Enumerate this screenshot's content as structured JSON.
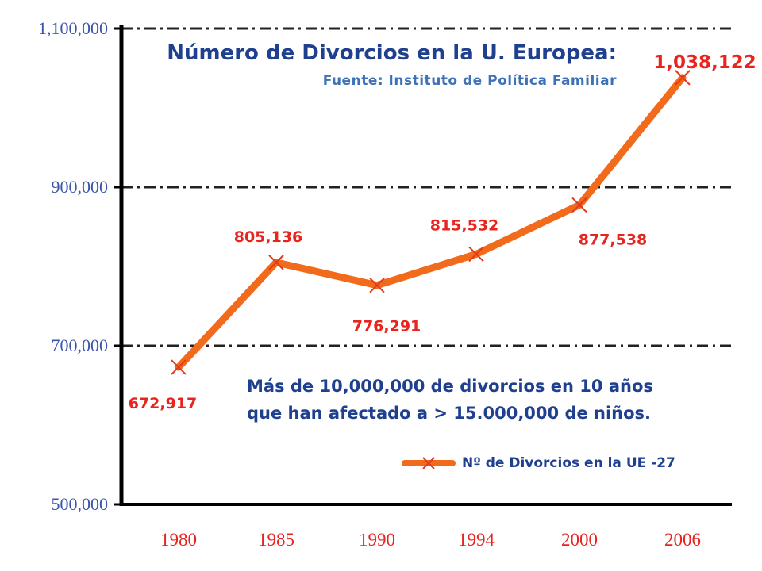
{
  "chart_data": {
    "type": "line",
    "title": "Número de Divorcios en la U. Europea:",
    "subtitle": "Fuente: Instituto de Política Familiar",
    "categories": [
      "1980",
      "1985",
      "1990",
      "1994",
      "2000",
      "2006"
    ],
    "series": [
      {
        "name": "Nº de Divorcios en la UE -27",
        "values": [
          672917,
          805136,
          776291,
          815532,
          877538,
          1038122
        ],
        "data_labels": [
          "672,917",
          "805,136",
          "776,291",
          "815,532",
          "877,538",
          "1,038,122"
        ],
        "color": "#f26a1b",
        "marker": "x"
      }
    ],
    "ylim": [
      500000,
      1100000
    ],
    "yticks": [
      500000,
      700000,
      900000,
      1100000
    ],
    "ytick_labels": [
      "500,000",
      "700,000",
      "900,000",
      "1,100,000"
    ],
    "xlabel": "",
    "ylabel": "",
    "grid": "dash-dot horizontal",
    "legend_position": "bottom-right",
    "annotation": {
      "line1": "Más de 10,000,000 de divorcios en 10 años",
      "line2": "que han afectado a > 15.000,000 de niños."
    },
    "colors": {
      "line": "#f26a1b",
      "data_labels": "#e8241f",
      "text": "#1f3f8f",
      "yaxis_labels": "#3a55a8",
      "xaxis_labels": "#e8241f"
    }
  }
}
